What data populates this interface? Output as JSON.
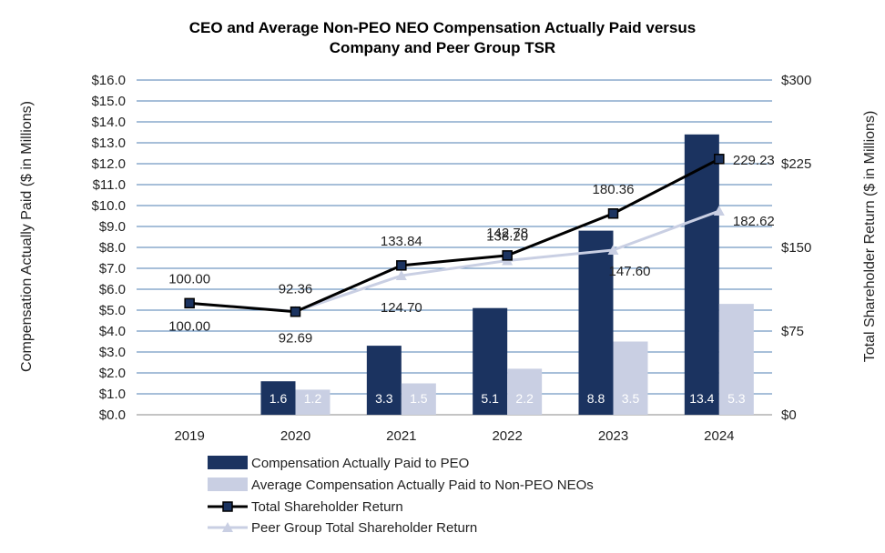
{
  "chart_data": {
    "type": "bar",
    "title_line1": "CEO and Average Non-PEO NEO Compensation Actually Paid versus",
    "title_line2": "Company and Peer Group TSR",
    "categories": [
      "2019",
      "2020",
      "2021",
      "2022",
      "2023",
      "2024"
    ],
    "ylabel_left": "Compensation  Actually Paid ($ in Millions)",
    "ylabel_right": "Total  Shareholder Return  ($ in Millions)",
    "ylim_left": [
      0,
      16
    ],
    "ylim_right": [
      0,
      300
    ],
    "left_ticks": [
      "$0.0",
      "$1.0",
      "$2.0",
      "$3.0",
      "$4.0",
      "$5.0",
      "$6.0",
      "$7.0",
      "$8.0",
      "$9.0",
      "$10.0",
      "$11.0",
      "$12.0",
      "$13.0",
      "$14.0",
      "$15.0",
      "$16.0"
    ],
    "right_ticks": [
      "$0",
      "$75",
      "$150",
      "$225",
      "$300"
    ],
    "series": [
      {
        "name": "Compensation Actually Paid to PEO",
        "kind": "bar",
        "axis": "left",
        "color": "#1b3360",
        "values": [
          null,
          1.6,
          3.3,
          5.1,
          8.8,
          13.4
        ],
        "labels": [
          "",
          "1.6",
          "3.3",
          "5.1",
          "8.8",
          "13.4"
        ]
      },
      {
        "name": "Average Compensation Actually Paid to Non-PEO NEOs",
        "kind": "bar",
        "axis": "left",
        "color": "#c9cfe3",
        "values": [
          null,
          1.2,
          1.5,
          2.2,
          3.5,
          5.3
        ],
        "labels": [
          "",
          "1.2",
          "1.5",
          "2.2",
          "3.5",
          "5.3"
        ]
      },
      {
        "name": "Total Shareholder Return",
        "kind": "line",
        "axis": "right",
        "color": "#000000",
        "values": [
          100.0,
          92.36,
          133.84,
          142.78,
          180.36,
          229.23
        ],
        "labels": [
          "100.00",
          "92.36",
          "133.84",
          "142.78",
          "180.36",
          "229.23"
        ]
      },
      {
        "name": "Peer Group Total Shareholder Return",
        "kind": "line",
        "axis": "right",
        "color": "#c9cfe3",
        "values": [
          100.0,
          92.69,
          124.7,
          138.2,
          147.6,
          182.62
        ],
        "labels": [
          "100.00",
          "92.69",
          "124.70",
          "138.20",
          "147.60",
          "182.62"
        ]
      }
    ],
    "grid": true,
    "legend_position": "bottom"
  }
}
